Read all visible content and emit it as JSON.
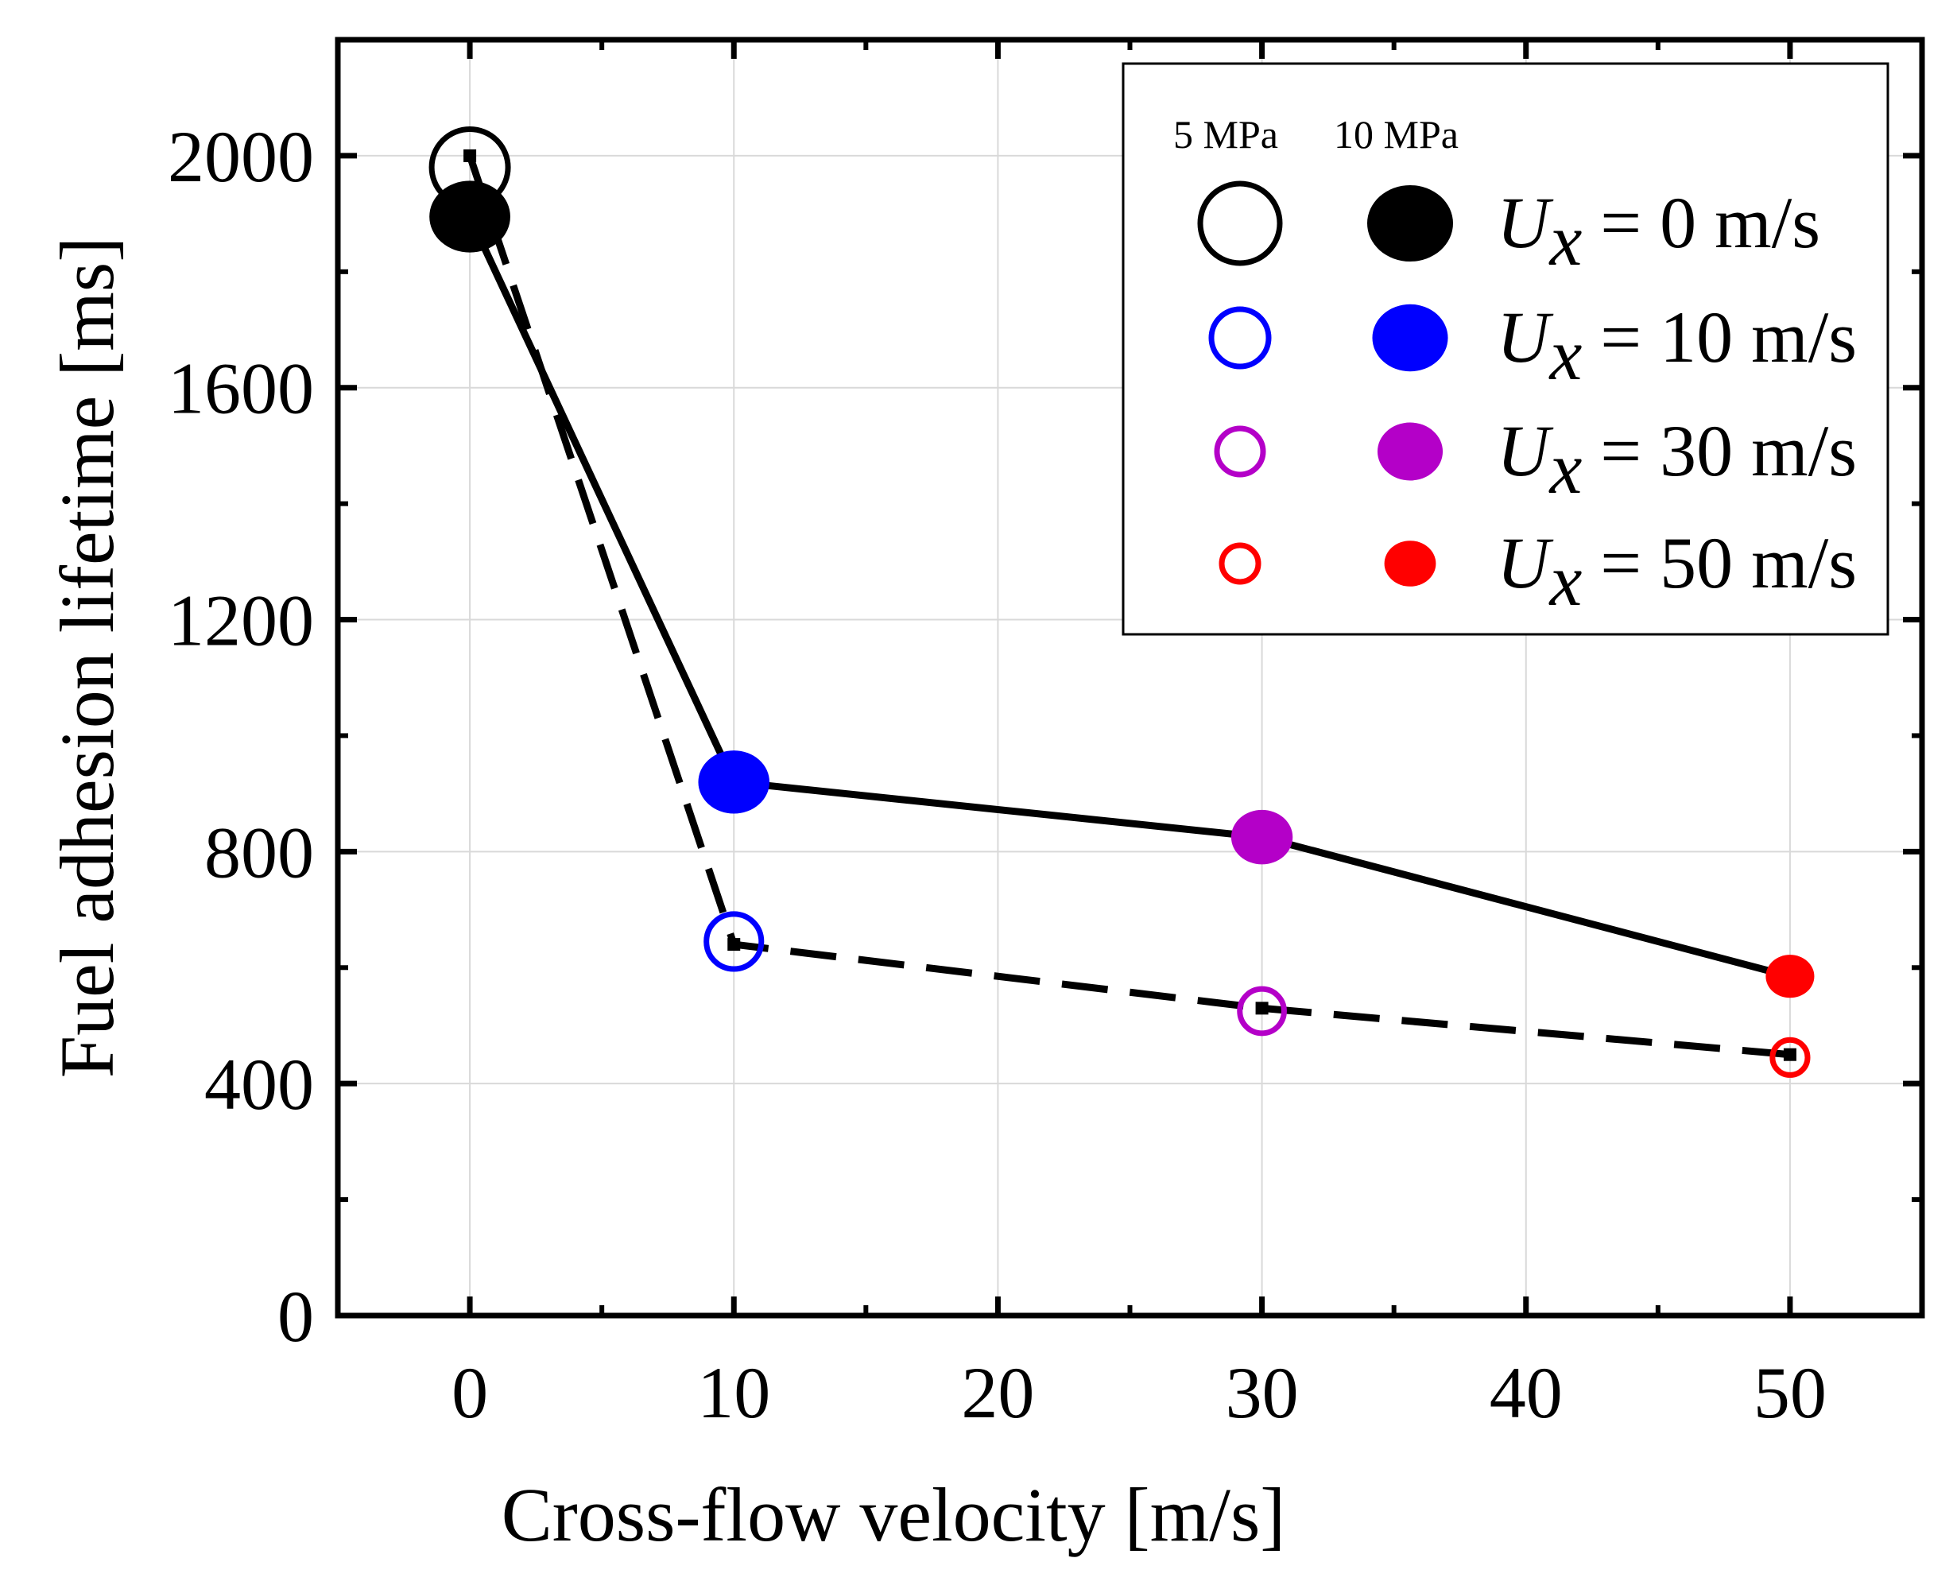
{
  "chart_data": {
    "type": "line",
    "title": "",
    "xlabel": "Cross-flow velocity [m/s]",
    "ylabel": "Fuel adhesion lifetime [ms]",
    "xlim": [
      -5,
      55
    ],
    "ylim": [
      0,
      2200
    ],
    "x_ticks": [
      0,
      10,
      20,
      30,
      40,
      50
    ],
    "y_ticks": [
      0,
      400,
      800,
      1200,
      1600,
      2000
    ],
    "x_tick_labels": [
      "0",
      "10",
      "20",
      "30",
      "40",
      "50"
    ],
    "y_tick_labels": [
      "0",
      "400",
      "800",
      "1200",
      "1600",
      "2000"
    ],
    "grid": true,
    "series": [
      {
        "name": "5 MPa",
        "line_style": "dashed",
        "marker": "open-circle",
        "x": [
          0,
          10,
          30,
          50
        ],
        "y": [
          2000,
          640,
          530,
          450
        ],
        "marker_y": [
          1980,
          645,
          525,
          445
        ],
        "point_colors": [
          "#000000",
          "#0000ff",
          "#b400c8",
          "#ff0000"
        ],
        "marker_sizes": [
          1.0,
          0.72,
          0.58,
          0.46
        ]
      },
      {
        "name": "10 MPa",
        "line_style": "solid",
        "marker": "filled-circle",
        "x": [
          0,
          10,
          30,
          50
        ],
        "y": [
          1895,
          920,
          825,
          585
        ],
        "point_colors": [
          "#000000",
          "#0000ff",
          "#b400c8",
          "#ff0000"
        ],
        "marker_sizes": [
          1.0,
          0.88,
          0.76,
          0.6
        ]
      }
    ],
    "legend": {
      "placement": "top-right",
      "header_5mpa": "5 MPa",
      "header_10mpa": "10 MPa",
      "entries": [
        {
          "sym": "U",
          "sub": "x",
          "rest": " =   0 m/s",
          "color": "#000000",
          "open_size": 1.0,
          "filled_size": 1.0
        },
        {
          "sym": "U",
          "sub": "x",
          "rest": " = 10 m/s",
          "color": "#0000ff",
          "open_size": 0.72,
          "filled_size": 0.88
        },
        {
          "sym": "U",
          "sub": "x",
          "rest": " = 30 m/s",
          "color": "#b400c8",
          "open_size": 0.58,
          "filled_size": 0.76
        },
        {
          "sym": "U",
          "sub": "x",
          "rest": " = 50 m/s",
          "color": "#ff0000",
          "open_size": 0.46,
          "filled_size": 0.6
        }
      ]
    }
  }
}
